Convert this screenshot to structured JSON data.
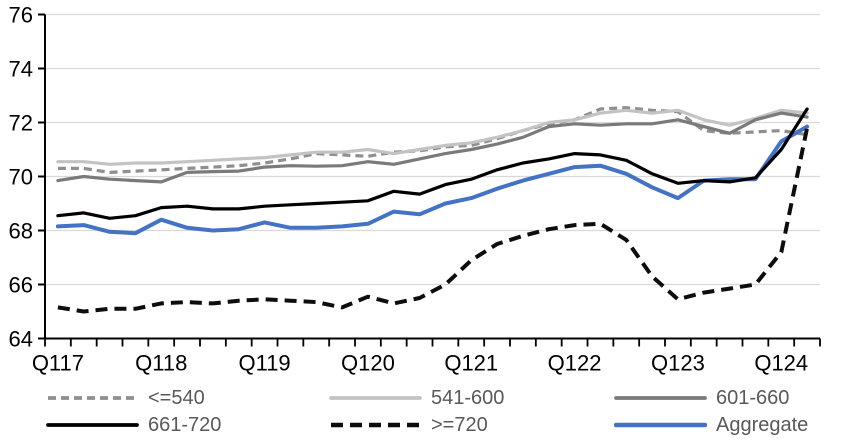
{
  "chart_data": {
    "type": "line",
    "title": "",
    "xlabel": "",
    "ylabel": "",
    "ylim": [
      64,
      76
    ],
    "yticks": [
      64,
      66,
      68,
      70,
      72,
      74,
      76
    ],
    "grid": "horizontal",
    "legend_position": "bottom",
    "n_points": 30,
    "x_unit": "quarter",
    "x_tick_labels": [
      {
        "label": "Q117",
        "index": 0
      },
      {
        "label": "Q118",
        "index": 4
      },
      {
        "label": "Q119",
        "index": 8
      },
      {
        "label": "Q120",
        "index": 12
      },
      {
        "label": "Q121",
        "index": 16
      },
      {
        "label": "Q122",
        "index": 20
      },
      {
        "label": "Q123",
        "index": 24
      },
      {
        "label": "Q124",
        "index": 28
      }
    ],
    "series": [
      {
        "name": "<=540",
        "color": "#8F8F8F",
        "dash": "8 5",
        "width": 3.2,
        "values": [
          70.3,
          70.3,
          70.15,
          70.2,
          70.25,
          70.3,
          70.35,
          70.4,
          70.5,
          70.65,
          70.85,
          70.8,
          70.75,
          70.9,
          70.95,
          71.1,
          71.15,
          71.4,
          71.7,
          71.95,
          72.1,
          72.5,
          72.55,
          72.45,
          72.4,
          71.7,
          71.6,
          71.65,
          71.7,
          71.55
        ]
      },
      {
        "name": "541-600",
        "color": "#C3C3C3",
        "dash": "",
        "width": 3.2,
        "values": [
          70.55,
          70.55,
          70.45,
          70.5,
          70.5,
          70.55,
          70.6,
          70.65,
          70.7,
          70.8,
          70.9,
          70.9,
          71.0,
          70.85,
          71.0,
          71.15,
          71.25,
          71.45,
          71.7,
          72.0,
          72.1,
          72.35,
          72.45,
          72.35,
          72.45,
          72.1,
          71.9,
          72.15,
          72.45,
          72.35
        ]
      },
      {
        "name": "601-660",
        "color": "#7A7A7A",
        "dash": "",
        "width": 3.2,
        "values": [
          69.85,
          70.0,
          69.9,
          69.85,
          69.8,
          70.15,
          70.18,
          70.2,
          70.35,
          70.4,
          70.38,
          70.4,
          70.55,
          70.45,
          70.65,
          70.85,
          71.0,
          71.2,
          71.45,
          71.85,
          71.95,
          71.9,
          71.95,
          71.95,
          72.1,
          71.85,
          71.6,
          72.1,
          72.35,
          72.2
        ]
      },
      {
        "name": "661-720",
        "color": "#000000",
        "dash": "",
        "width": 3.2,
        "values": [
          68.55,
          68.65,
          68.45,
          68.55,
          68.85,
          68.9,
          68.8,
          68.8,
          68.9,
          68.95,
          69.0,
          69.05,
          69.1,
          69.45,
          69.35,
          69.7,
          69.9,
          70.25,
          70.5,
          70.65,
          70.85,
          70.8,
          70.6,
          70.1,
          69.75,
          69.85,
          69.8,
          69.95,
          71.0,
          72.5
        ]
      },
      {
        "name": ">=720",
        "color": "#0D0D0D",
        "dash": "12 7",
        "width": 4,
        "values": [
          65.15,
          65.0,
          65.1,
          65.1,
          65.3,
          65.35,
          65.3,
          65.4,
          65.45,
          65.4,
          65.35,
          65.15,
          65.55,
          65.3,
          65.5,
          66.0,
          66.9,
          67.5,
          67.8,
          68.05,
          68.2,
          68.25,
          67.65,
          66.3,
          65.45,
          65.7,
          65.85,
          66.0,
          67.2,
          71.8
        ]
      },
      {
        "name": "Aggregate",
        "color": "#4472C4",
        "dash": "",
        "width": 4,
        "values": [
          68.15,
          68.2,
          67.95,
          67.9,
          68.4,
          68.1,
          68.0,
          68.05,
          68.3,
          68.1,
          68.1,
          68.15,
          68.25,
          68.7,
          68.6,
          69.0,
          69.2,
          69.55,
          69.85,
          70.1,
          70.35,
          70.4,
          70.1,
          69.6,
          69.2,
          69.85,
          69.9,
          69.9,
          71.3,
          71.85
        ]
      }
    ],
    "colors": {
      "background": "#FFFFFF",
      "gridline": "#D9D9D9",
      "axis": "#000000",
      "axis_label": "#000000",
      "legend_text": "#595959",
      "accent_blue": "#4472C4"
    }
  }
}
